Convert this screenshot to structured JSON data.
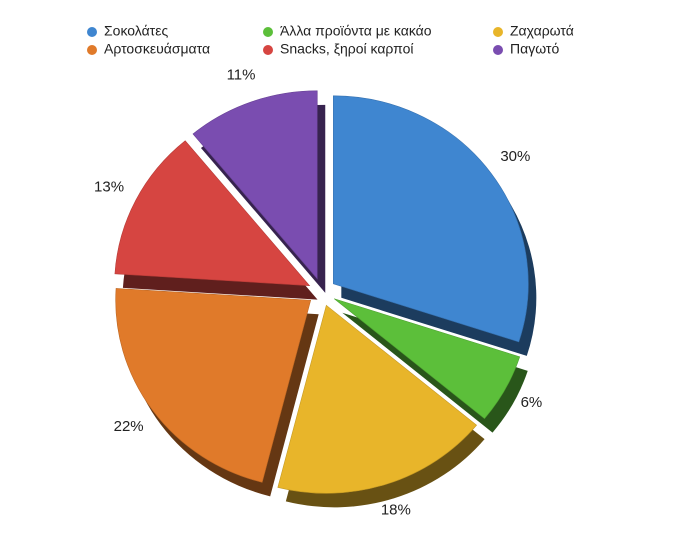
{
  "chart_data": {
    "type": "pie",
    "categories": [
      "Σοκολάτες",
      "Άλλα προϊόντα με κακάο",
      "Ζαχαρωτά",
      "Αρτοσκευάσματα",
      "Snacks, ξηροί καρποί",
      "Παγωτό"
    ],
    "values": [
      30,
      6,
      18,
      22,
      13,
      11
    ],
    "value_labels": [
      "30%",
      "6%",
      "18%",
      "22%",
      "13%",
      "11%"
    ],
    "colors": [
      "#3f86d0",
      "#5cbf3a",
      "#e8b52a",
      "#e07a2a",
      "#d64541",
      "#7a4db0"
    ]
  }
}
